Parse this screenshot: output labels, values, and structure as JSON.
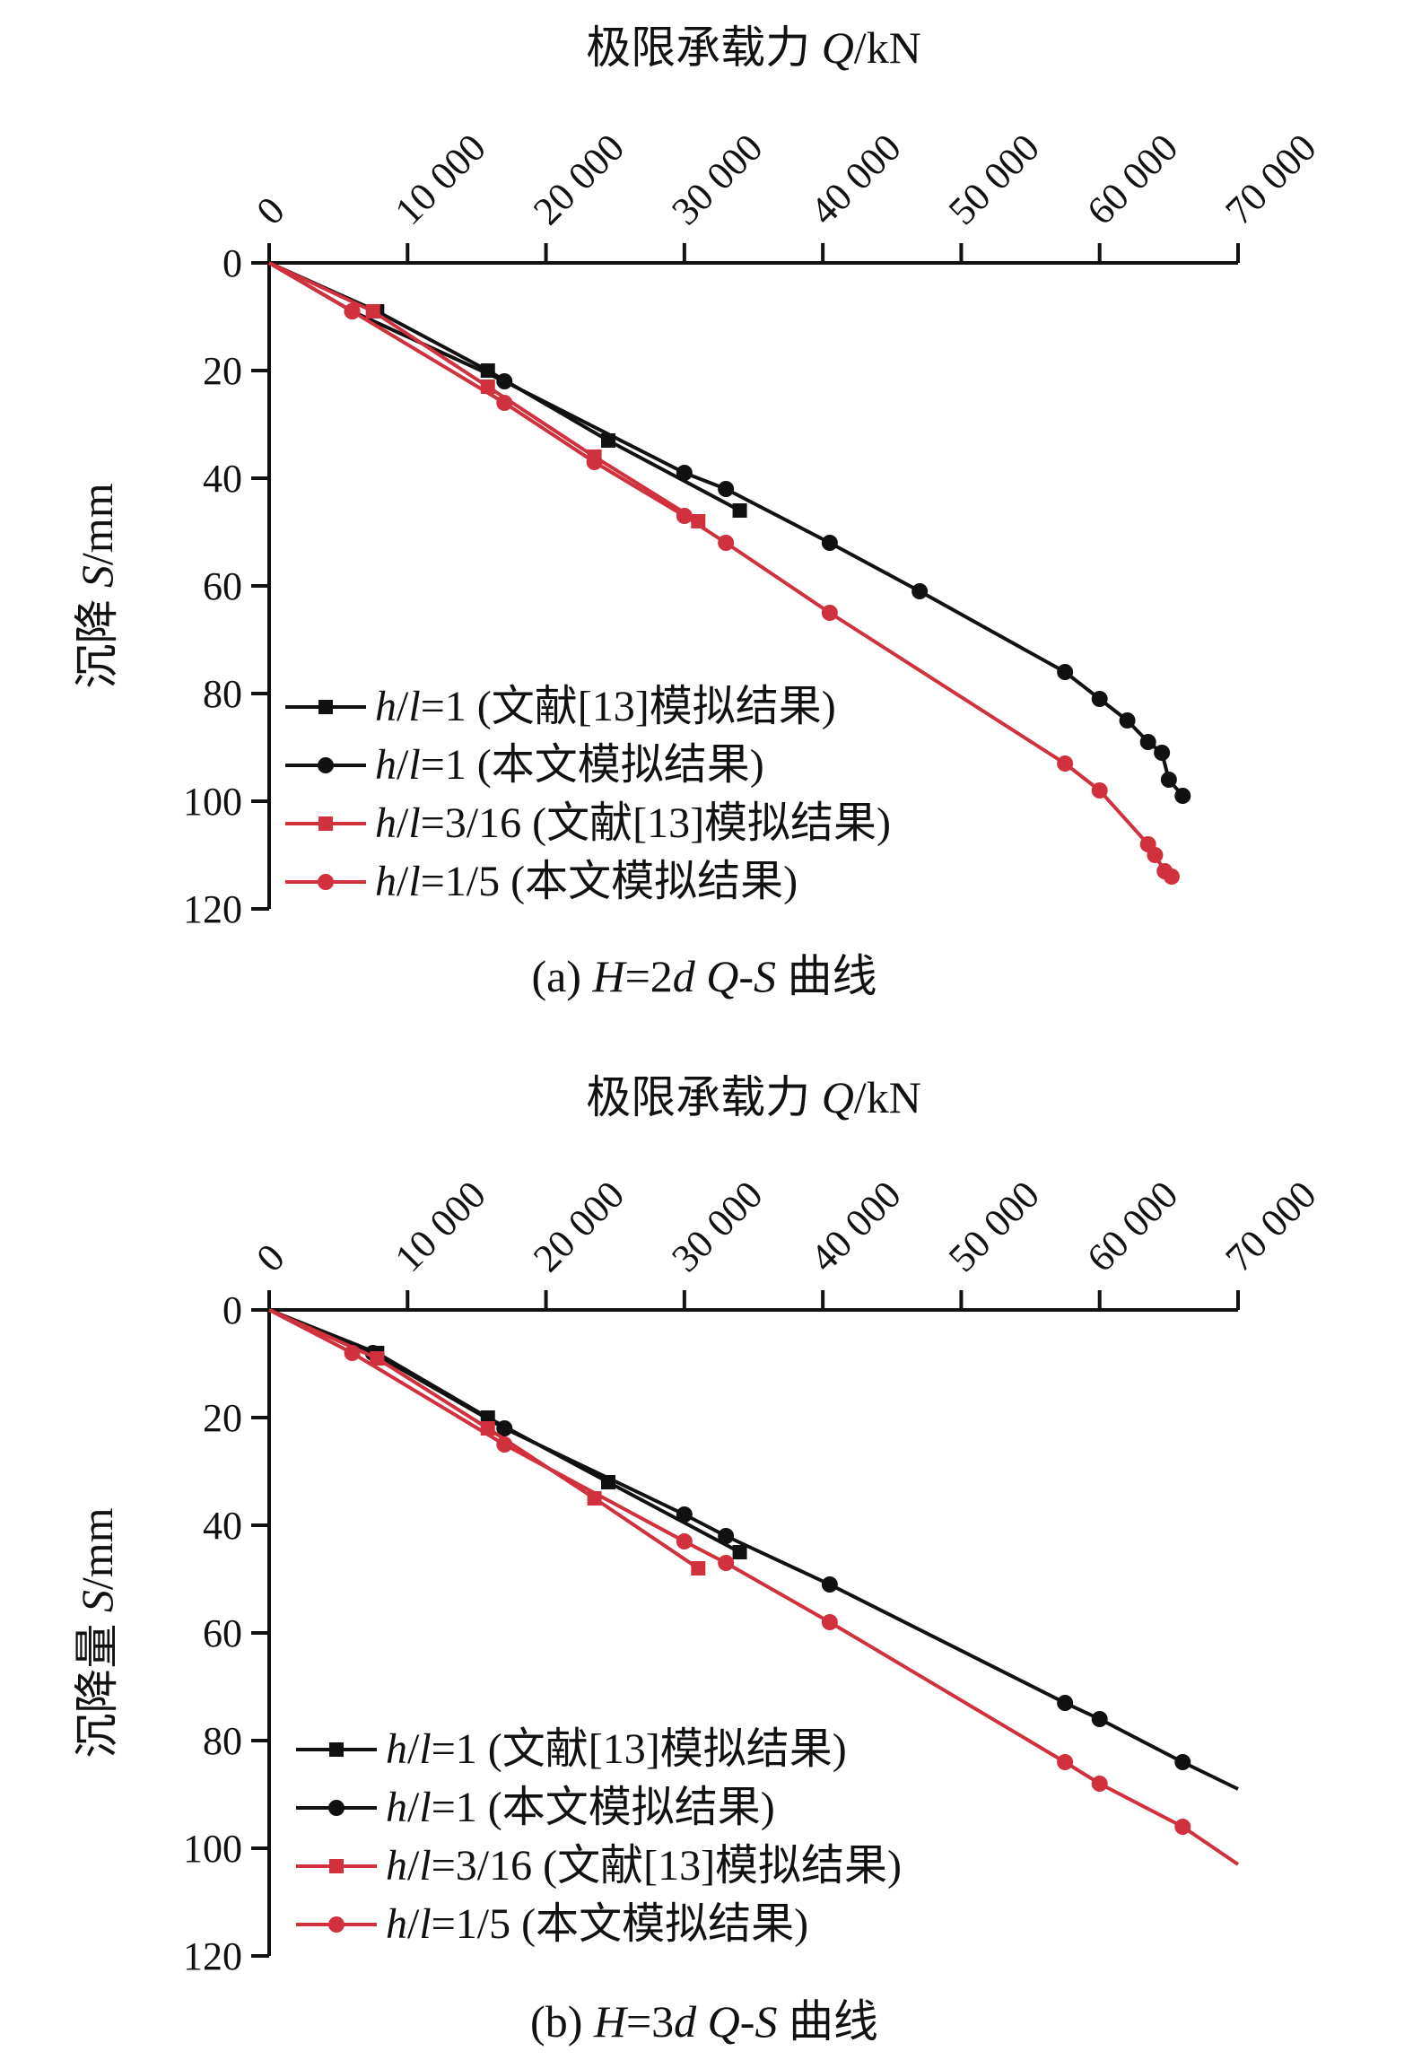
{
  "colors": {
    "black_series": "#111111",
    "red_series": "#d0313d",
    "axis": "#111111"
  },
  "chart_data": [
    {
      "type": "line",
      "caption": "(a) H=2d Q-S 曲线",
      "xlabel": "极限承载力 Q/kN",
      "ylabel": "沉降 S/mm",
      "xlim": [
        0,
        70000
      ],
      "ylim": [
        0,
        120
      ],
      "y_inverted": true,
      "x_axis_position": "top",
      "x_ticks": [
        0,
        10000,
        20000,
        30000,
        40000,
        50000,
        60000,
        70000
      ],
      "x_tick_labels": [
        "0",
        "10 000",
        "20 000",
        "30 000",
        "40 000",
        "50 000",
        "60 000",
        "70 000"
      ],
      "y_ticks": [
        0,
        20,
        40,
        60,
        80,
        100,
        120
      ],
      "y_tick_labels": [
        "0",
        "20",
        "40",
        "60",
        "80",
        "100",
        "120"
      ],
      "legend_position": "bottom-left",
      "series": [
        {
          "name": "h/l=1 (文献[13]模拟结果)",
          "color": "#111111",
          "marker": "square",
          "x": [
            0,
            7800,
            15800,
            24500,
            34000
          ],
          "y": [
            0,
            9,
            20,
            33,
            46
          ]
        },
        {
          "name": "h/l=1 (本文模拟结果)",
          "color": "#111111",
          "marker": "circle",
          "x": [
            0,
            6000,
            17000,
            30000,
            33000,
            40500,
            47000,
            57500,
            60000,
            62000,
            63500,
            64500,
            65000,
            66000
          ],
          "y": [
            0,
            9,
            22,
            39,
            42,
            52,
            61,
            76,
            81,
            85,
            89,
            91,
            96,
            99
          ]
        },
        {
          "name": "h/l=3/16 (文献[13]模拟结果)",
          "color": "#d0313d",
          "marker": "square",
          "x": [
            0,
            7500,
            15800,
            23500,
            31000
          ],
          "y": [
            0,
            9,
            23,
            36,
            48
          ]
        },
        {
          "name": "h/l=1/5 (本文模拟结果)",
          "color": "#d0313d",
          "marker": "circle",
          "x": [
            0,
            6000,
            17000,
            23500,
            30000,
            33000,
            40500,
            57500,
            60000,
            63500,
            64000,
            64700,
            65200
          ],
          "y": [
            0,
            9,
            26,
            37,
            47,
            52,
            65,
            93,
            98,
            108,
            110,
            113,
            114
          ]
        }
      ]
    },
    {
      "type": "line",
      "caption": "(b) H=3d Q-S 曲线",
      "xlabel": "极限承载力 Q/kN",
      "ylabel": "沉降量 S/mm",
      "xlim": [
        0,
        70000
      ],
      "ylim": [
        0,
        120
      ],
      "y_inverted": true,
      "x_axis_position": "top",
      "x_ticks": [
        0,
        10000,
        20000,
        30000,
        40000,
        50000,
        60000,
        70000
      ],
      "x_tick_labels": [
        "0",
        "10 000",
        "20 000",
        "30 000",
        "40 000",
        "50 000",
        "60 000",
        "70 000"
      ],
      "y_ticks": [
        0,
        20,
        40,
        60,
        80,
        100,
        120
      ],
      "y_tick_labels": [
        "0",
        "20",
        "40",
        "60",
        "80",
        "100",
        "120"
      ],
      "legend_position": "bottom-left",
      "series": [
        {
          "name": "h/l=1 (文献[13]模拟结果)",
          "color": "#111111",
          "marker": "square",
          "x": [
            0,
            7800,
            15800,
            24500,
            34000
          ],
          "y": [
            0,
            8,
            20,
            32,
            45
          ]
        },
        {
          "name": "h/l=1 (本文模拟结果)",
          "color": "#111111",
          "marker": "circle",
          "trailing_line_to": [
            70000,
            89
          ],
          "x": [
            0,
            7500,
            17000,
            30000,
            33000,
            40500,
            57500,
            60000,
            66000
          ],
          "y": [
            0,
            8,
            22,
            38,
            42,
            51,
            73,
            76,
            84
          ]
        },
        {
          "name": "h/l=3/16 (文献[13]模拟结果)",
          "color": "#d0313d",
          "marker": "square",
          "x": [
            0,
            7800,
            15800,
            23500,
            31000
          ],
          "y": [
            0,
            9,
            22,
            35,
            48
          ]
        },
        {
          "name": "h/l=1/5 (本文模拟结果)",
          "color": "#d0313d",
          "marker": "circle",
          "trailing_line_to": [
            70000,
            103
          ],
          "x": [
            0,
            6000,
            17000,
            30000,
            33000,
            40500,
            57500,
            60000,
            66000
          ],
          "y": [
            0,
            8,
            25,
            43,
            47,
            58,
            84,
            88,
            96
          ]
        }
      ]
    }
  ]
}
